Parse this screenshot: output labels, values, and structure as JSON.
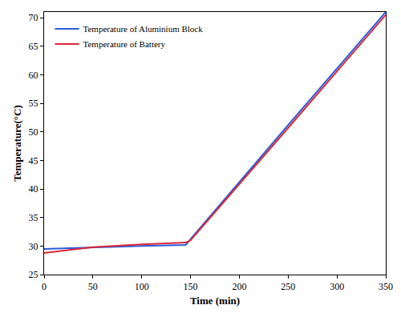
{
  "chart_data": {
    "type": "line",
    "x_label": "Time (min)",
    "y_label": "Temperature(°C)",
    "series": [
      {
        "name": "Temperature of Aluminium Block",
        "color": "#2a5bd7",
        "x": [
          0,
          50,
          100,
          145,
          150,
          200,
          250,
          300,
          350
        ],
        "values": [
          29.5,
          29.8,
          30.0,
          30.2,
          31.2,
          41.3,
          51.2,
          61.1,
          71.0
        ]
      },
      {
        "name": "Temperature of Battery",
        "color": "#d9283a",
        "x": [
          0,
          50,
          100,
          145,
          150,
          200,
          250,
          300,
          350
        ],
        "values": [
          28.8,
          29.8,
          30.3,
          30.6,
          31.0,
          40.8,
          50.7,
          60.6,
          70.5
        ]
      }
    ],
    "xlim": [
      0,
      350
    ],
    "xticks": [
      0,
      50,
      100,
      150,
      200,
      250,
      300,
      350
    ],
    "ylim": [
      25,
      71
    ],
    "yticks": [
      25,
      30,
      35,
      40,
      45,
      50,
      55,
      60,
      65,
      70
    ],
    "grid": false,
    "legend": "upper left"
  }
}
